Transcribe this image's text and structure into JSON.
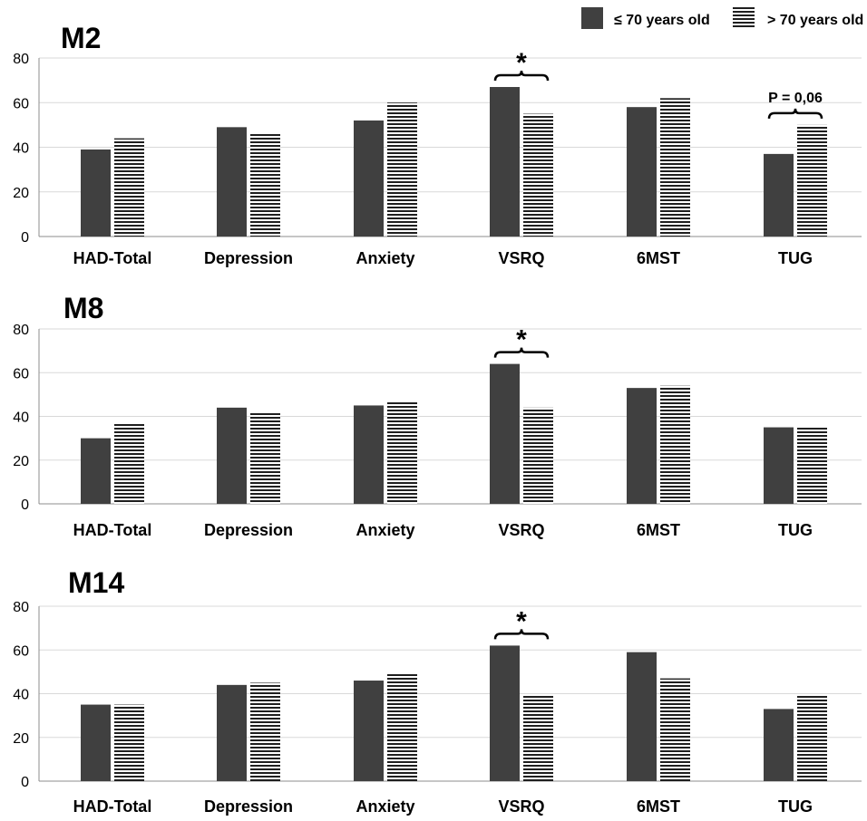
{
  "legend": {
    "items": [
      {
        "label": "≤ 70 years old",
        "pattern": "solid"
      },
      {
        "label": "> 70 years old",
        "pattern": "stripes"
      }
    ]
  },
  "colors": {
    "solid_bar": "#404040",
    "stripe_bar": "#1f1f1f",
    "gridline": "#d9d9d9",
    "axis": "#8c8c8c",
    "text": "#000000"
  },
  "chart_data": [
    {
      "type": "bar",
      "title": "M2",
      "categories": [
        "HAD-Total",
        "Depression",
        "Anxiety",
        "VSRQ",
        "6MST",
        "TUG"
      ],
      "ylim": [
        0,
        80
      ],
      "yticks": [
        0,
        20,
        40,
        60,
        80
      ],
      "grid": true,
      "series": [
        {
          "name": "≤ 70 years old",
          "values": [
            39,
            49,
            52,
            67,
            58,
            37
          ]
        },
        {
          "name": "> 70 years old",
          "values": [
            44,
            46,
            60,
            55,
            62,
            50
          ]
        }
      ],
      "annotations": [
        {
          "category": "VSRQ",
          "label": "*"
        },
        {
          "category": "TUG",
          "label": "P = 0,06"
        }
      ]
    },
    {
      "type": "bar",
      "title": "M8",
      "categories": [
        "HAD-Total",
        "Depression",
        "Anxiety",
        "VSRQ",
        "6MST",
        "TUG"
      ],
      "ylim": [
        0,
        80
      ],
      "yticks": [
        0,
        20,
        40,
        60,
        80
      ],
      "grid": true,
      "series": [
        {
          "name": "≤ 70 years old",
          "values": [
            30,
            44,
            45,
            64,
            53,
            35
          ]
        },
        {
          "name": "> 70 years old",
          "values": [
            37,
            42,
            47,
            44,
            54,
            35
          ]
        }
      ],
      "annotations": [
        {
          "category": "VSRQ",
          "label": "*"
        }
      ]
    },
    {
      "type": "bar",
      "title": "M14",
      "categories": [
        "HAD-Total",
        "Depression",
        "Anxiety",
        "VSRQ",
        "6MST",
        "TUG"
      ],
      "ylim": [
        0,
        80
      ],
      "yticks": [
        0,
        20,
        40,
        60,
        80
      ],
      "grid": true,
      "series": [
        {
          "name": "≤ 70 years old",
          "values": [
            35,
            44,
            46,
            62,
            59,
            33
          ]
        },
        {
          "name": "> 70 years old",
          "values": [
            35,
            45,
            49,
            39,
            47,
            39
          ]
        }
      ],
      "annotations": [
        {
          "category": "VSRQ",
          "label": "*"
        }
      ]
    }
  ]
}
